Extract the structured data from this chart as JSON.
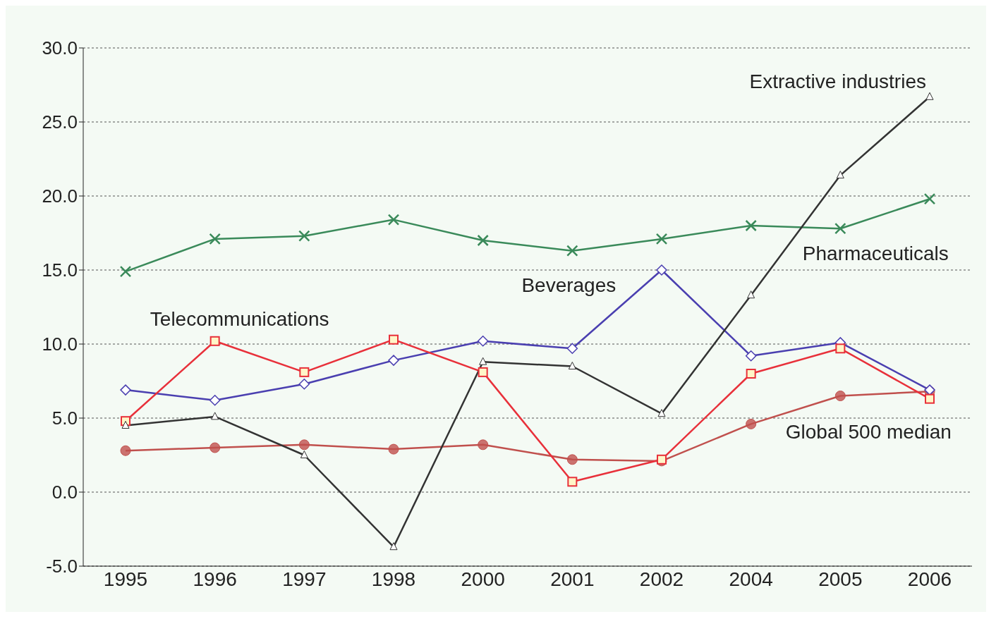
{
  "chart_data": {
    "type": "line",
    "categories": [
      "1995",
      "1996",
      "1997",
      "1998",
      "2000",
      "2001",
      "2002",
      "2004",
      "2005",
      "2006"
    ],
    "ylim": [
      -5,
      30
    ],
    "yticks": [
      {
        "value": -5,
        "label": "-5.0"
      },
      {
        "value": 0,
        "label": "0.0"
      },
      {
        "value": 5,
        "label": "5.0"
      },
      {
        "value": 10,
        "label": "10.0"
      },
      {
        "value": 15,
        "label": "15.0"
      },
      {
        "value": 20,
        "label": "20.0"
      },
      {
        "value": 25,
        "label": "25.0"
      },
      {
        "value": 30,
        "label": "30.0"
      }
    ],
    "grid": "y",
    "legend": false,
    "series": [
      {
        "name": "Pharmaceuticals",
        "color": "#3a8a5a",
        "marker": "cross",
        "values": [
          14.9,
          17.1,
          17.3,
          18.4,
          17.0,
          16.3,
          17.1,
          18.0,
          17.8,
          19.8
        ]
      },
      {
        "name": "Beverages",
        "color": "#4a3fb0",
        "marker": "diamond",
        "values": [
          6.9,
          6.2,
          7.3,
          8.9,
          10.2,
          9.7,
          15.0,
          9.2,
          10.1,
          6.9
        ]
      },
      {
        "name": "Telecommunications",
        "color": "#e8303a",
        "marker": "square",
        "values": [
          4.8,
          10.2,
          8.1,
          10.3,
          8.1,
          0.7,
          2.2,
          8.0,
          9.7,
          6.3
        ]
      },
      {
        "name": "Extractive industries",
        "color": "#333333",
        "marker": "triangle",
        "values": [
          4.5,
          5.1,
          2.5,
          -3.7,
          8.8,
          8.5,
          5.3,
          13.3,
          21.4,
          26.7
        ]
      },
      {
        "name": "Global 500 median",
        "color": "#c0504d",
        "marker": "circle",
        "values": [
          2.8,
          3.0,
          3.2,
          2.9,
          3.2,
          2.2,
          2.1,
          4.6,
          6.5,
          6.8
        ]
      }
    ]
  }
}
